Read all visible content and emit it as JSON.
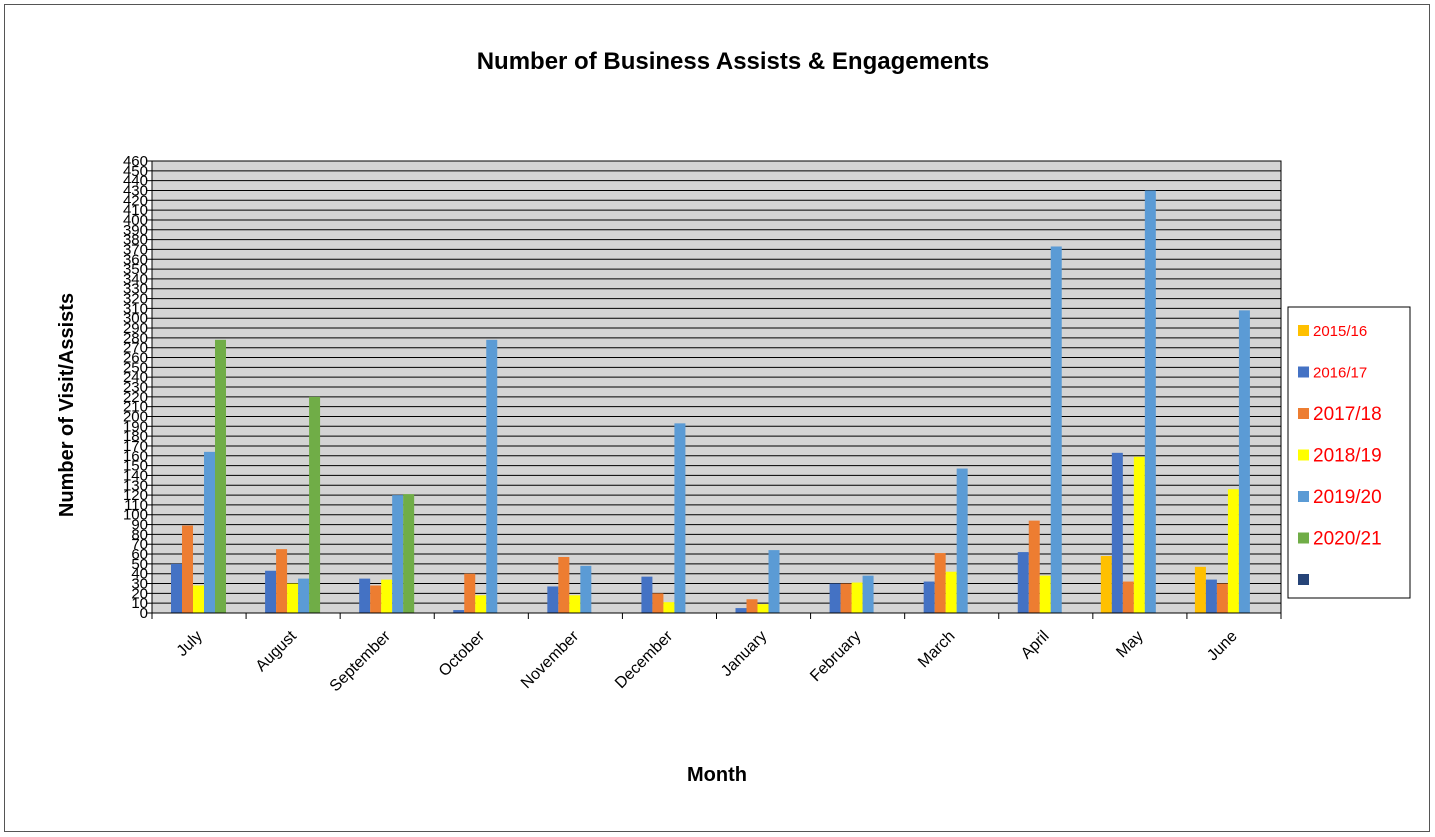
{
  "chart_data": {
    "type": "bar",
    "title": "Number of Business Assists & Engagements",
    "xlabel": "Month",
    "ylabel": "Number of Visit/Assists",
    "ylim": [
      0,
      460
    ],
    "ytick_step": 10,
    "ytick_labels": [
      "0",
      "10",
      "20",
      "30",
      "40",
      "50",
      "60",
      "70",
      "80",
      "90",
      "100",
      "110",
      "120",
      "130",
      "140",
      "150",
      "160",
      "170",
      "180",
      "190",
      "200",
      "210",
      "220",
      "230",
      "240",
      "250",
      "260",
      "270",
      "280",
      "290",
      "300",
      "310",
      "320",
      "330",
      "340",
      "350",
      "360",
      "370",
      "380",
      "390",
      "400",
      "410",
      "420",
      "430",
      "440",
      "450",
      "460"
    ],
    "grid": true,
    "legend_position": "right",
    "categories": [
      "July",
      "August",
      "September",
      "October",
      "November",
      "December",
      "January",
      "February",
      "March",
      "April",
      "May",
      "June"
    ],
    "series": [
      {
        "name": "2015/16",
        "color": "#ffc000",
        "values": [
          0,
          0,
          0,
          0,
          0,
          0,
          0,
          0,
          0,
          0,
          58,
          47
        ]
      },
      {
        "name": "2016/17",
        "color": "#4472c4",
        "values": [
          50,
          43,
          35,
          3,
          27,
          37,
          5,
          30,
          32,
          62,
          163,
          34
        ]
      },
      {
        "name": "2017/18",
        "color": "#ed7d31",
        "values": [
          89,
          65,
          28,
          40,
          57,
          20,
          14,
          30,
          61,
          94,
          32,
          30
        ]
      },
      {
        "name": "2018/19",
        "color": "#ffff00",
        "values": [
          28,
          30,
          34,
          18,
          18,
          11,
          9,
          31,
          42,
          38,
          159,
          126
        ]
      },
      {
        "name": "2019/20",
        "color": "#5b9bd5",
        "values": [
          164,
          35,
          120,
          278,
          48,
          193,
          64,
          38,
          147,
          373,
          430,
          308
        ]
      },
      {
        "name": "2020/21",
        "color": "#70ad47",
        "values": [
          278,
          220,
          121,
          0,
          0,
          0,
          0,
          0,
          0,
          0,
          0,
          0
        ]
      },
      {
        "name": "",
        "color": "#264478",
        "values": [
          0,
          0,
          0,
          0,
          0,
          0,
          0,
          0,
          0,
          0,
          0,
          0
        ]
      }
    ]
  }
}
